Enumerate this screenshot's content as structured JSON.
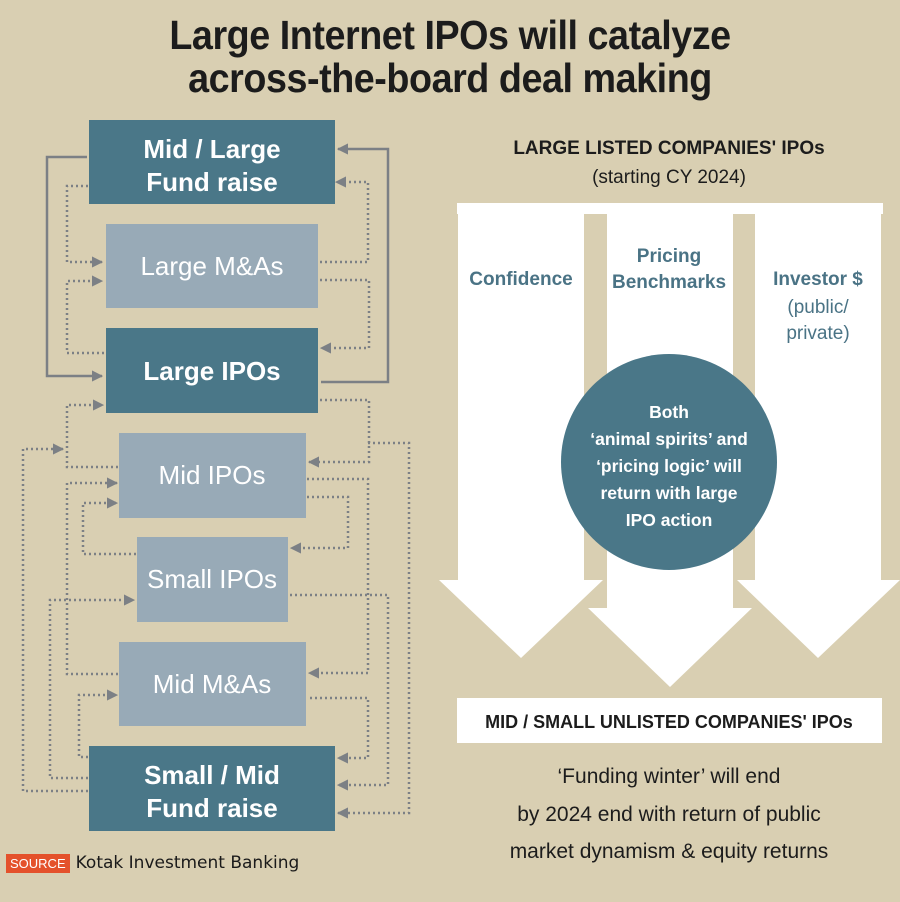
{
  "title": {
    "line1": "Large Internet IPOs will catalyze",
    "line2": "across-the-board deal making"
  },
  "flow": {
    "boxes": [
      {
        "line1": "Mid / Large",
        "line2": "Fund raise"
      },
      {
        "label": "Large M&As"
      },
      {
        "label": "Large IPOs"
      },
      {
        "label": "Mid IPOs"
      },
      {
        "label": "Small IPOs"
      },
      {
        "label": "Mid M&As"
      },
      {
        "line1": "Small / Mid",
        "line2": "Fund raise"
      }
    ]
  },
  "right": {
    "heading": "LARGE LISTED COMPANIES' IPOs",
    "subheading": "(starting CY 2024)",
    "arrows": [
      {
        "line1": "Confidence"
      },
      {
        "line1": "Pricing",
        "line2": "Benchmarks"
      },
      {
        "line1": "Investor $",
        "line2": "(public/",
        "line3": "private)"
      }
    ],
    "circle": [
      "Both",
      "‘animal spirits’ and",
      "‘pricing logic’ will",
      "return with large",
      "IPO action"
    ],
    "bottom_box": "MID / SMALL UNLISTED COMPANIES' IPOs",
    "conclusion": [
      "‘Funding winter’ will end",
      "by 2024 end with return of public",
      "market dynamism & equity returns"
    ]
  },
  "source": {
    "badge": "SOURCE",
    "text": "Kotak Investment Banking"
  },
  "colors": {
    "background": "#d9cfb2",
    "dark_box": "#4a7788",
    "light_box": "#98aab7",
    "accent_text": "#4a7385",
    "connector": "#7c8085",
    "source_badge": "#e4512b"
  }
}
